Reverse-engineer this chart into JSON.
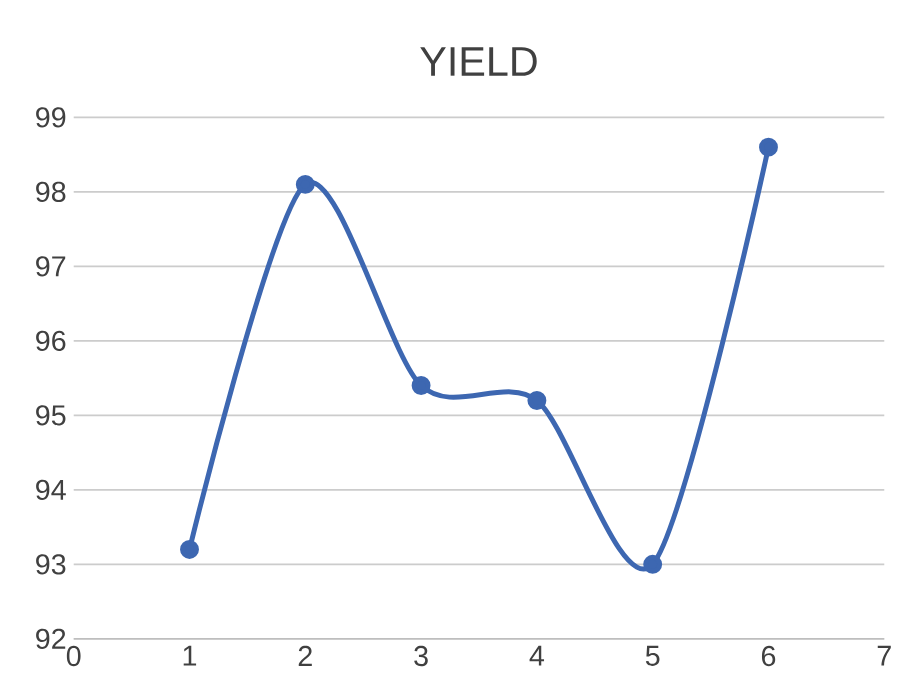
{
  "chart_data": {
    "type": "line",
    "title": "YIELD",
    "x": [
      1,
      2,
      3,
      4,
      5,
      6
    ],
    "series": [
      {
        "color": "#3d67b1",
        "values": [
          93.2,
          98.1,
          95.4,
          95.2,
          93.0,
          98.6
        ]
      }
    ],
    "xlim": [
      0,
      7
    ],
    "xticks": [
      0,
      1,
      2,
      3,
      4,
      5,
      6,
      7
    ],
    "ylim": [
      92,
      99
    ],
    "yticks": [
      92,
      93,
      94,
      95,
      96,
      97,
      98,
      99
    ],
    "grid": "y",
    "marker": "circle",
    "line_style": "solid"
  }
}
